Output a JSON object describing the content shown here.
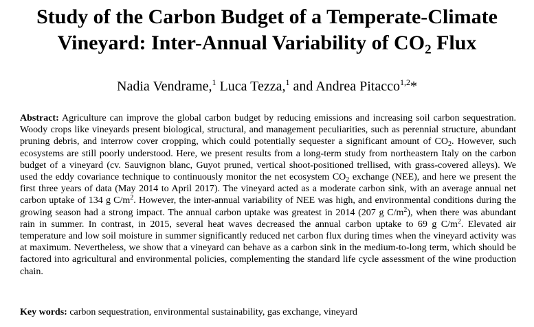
{
  "title": {
    "line1": "Study of the Carbon Budget of a Temperate-Climate",
    "line2_before": "Vineyard: Inter-Annual Variability of CO",
    "line2_sub": "2",
    "line2_after": " Flux"
  },
  "authors": {
    "a1_name": "Nadia Vendrame,",
    "a1_aff": "1",
    "a2_name": " Luca Tezza,",
    "a2_aff": "1",
    "a3_name": " and Andrea Pitacco",
    "a3_aff": "1,2",
    "a3_mark": "*"
  },
  "abstract": {
    "label": "Abstract:",
    "p1": " Agriculture can improve the global carbon budget by reducing emissions and increasing soil carbon sequestration. Woody crops like vineyards present biological, structural, and management peculiarities, such as perennial structure, abundant pruning debris, and interrow cover cropping, which could potentially sequester a significant amount of CO",
    "sub1": "2",
    "p2": ". However, such ecosystems are still poorly understood. Here, we present results from a long-term study from northeastern Italy on the carbon budget of a vineyard (cv. Sauvignon blanc, Guyot pruned, vertical shoot-positioned trellised, with grass-covered alleys). We used the eddy covariance technique to continuously monitor the net ecosystem CO",
    "sub2": "2",
    "p3": " exchange (NEE), and here we present the first three years of data (May 2014 to April 2017). The vineyard acted as a moderate carbon sink, with an average annual net carbon uptake of 134 g C/m",
    "sup1": "2",
    "p4": ". However, the inter-annual variability of NEE was high, and environmental conditions during the growing season had a strong impact. The annual carbon uptake was greatest in 2014 (207 g C/m",
    "sup2": "2",
    "p5": "), when there was abundant rain in summer. In contrast, in 2015, several heat waves decreased the annual carbon uptake to 69 g C/m",
    "sup3": "2",
    "p6": ". Elevated air temperature and low soil moisture in summer significantly reduced net carbon flux during times when the vineyard activity was at maximum. Nevertheless, we show that a vineyard can behave as a carbon sink in the medium-to-long term, which should be factored into agricultural and environmental policies, complementing the standard life cycle assessment of the wine production chain."
  },
  "keywords": {
    "label": "Key words:",
    "text": " carbon sequestration, environmental sustainability, gas exchange, vineyard"
  }
}
